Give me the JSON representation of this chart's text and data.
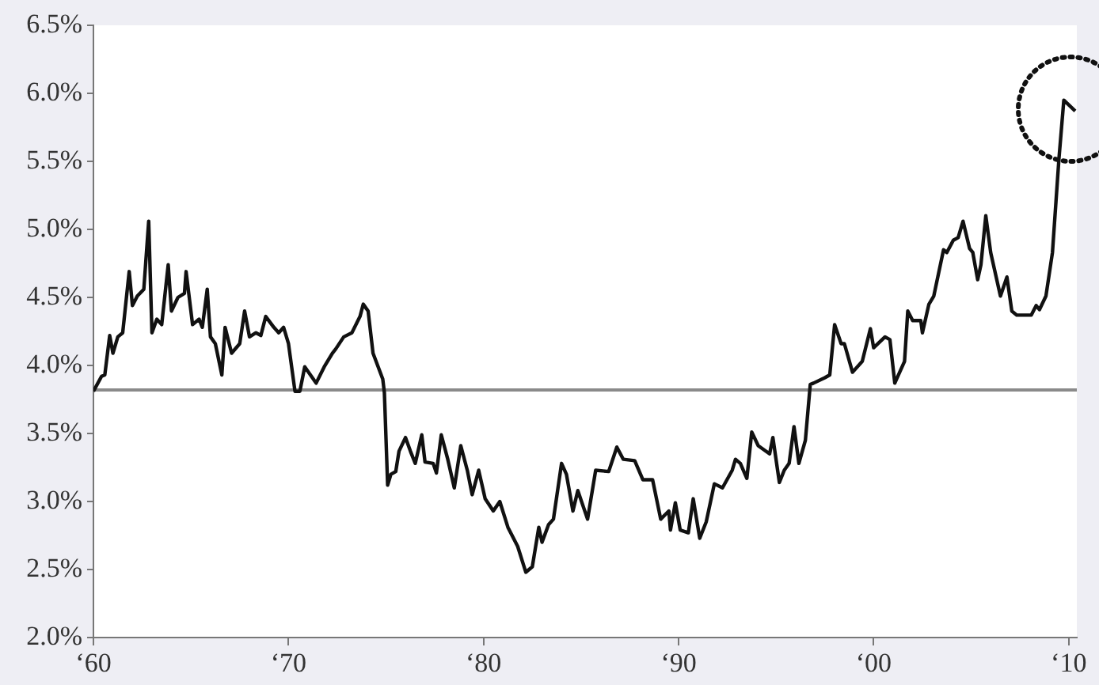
{
  "chart_data": {
    "type": "line",
    "x": [
      "1960-01",
      "1960-06",
      "1960-08",
      "1960-11",
      "1961-01",
      "1961-04",
      "1961-07",
      "1961-11",
      "1962-01",
      "1962-04",
      "1962-08",
      "1962-11",
      "1963-01",
      "1963-04",
      "1963-07",
      "1963-11",
      "1964-01",
      "1964-05",
      "1964-09",
      "1964-10",
      "1965-02",
      "1965-06",
      "1965-08",
      "1965-11",
      "1966-01",
      "1966-04",
      "1966-08",
      "1966-10",
      "1967-02",
      "1967-07",
      "1967-10",
      "1968-01",
      "1968-05",
      "1968-08",
      "1968-11",
      "1969-04",
      "1969-07",
      "1969-10",
      "1970-01",
      "1970-05",
      "1970-08",
      "1970-11",
      "1971-06",
      "1971-11",
      "1972-04",
      "1972-06",
      "1972-11",
      "1973-04",
      "1973-09",
      "1973-11",
      "1974-02",
      "1974-05",
      "1974-11",
      "1974-12",
      "1975-02",
      "1975-04",
      "1975-07",
      "1975-09",
      "1976-01",
      "1976-04",
      "1976-07",
      "1976-11",
      "1977-01",
      "1977-06",
      "1977-08",
      "1977-11",
      "1978-03",
      "1978-07",
      "1978-11",
      "1979-03",
      "1979-06",
      "1979-10",
      "1980-02",
      "1980-07",
      "1980-11",
      "1981-04",
      "1981-10",
      "1982-03",
      "1982-07",
      "1982-11",
      "1983-01",
      "1983-05",
      "1983-08",
      "1984-01",
      "1984-04",
      "1984-08",
      "1984-11",
      "1985-05",
      "1985-10",
      "1986-06",
      "1986-11",
      "1987-03",
      "1987-10",
      "1988-03",
      "1988-09",
      "1989-02",
      "1989-07",
      "1989-08",
      "1989-11",
      "1990-02",
      "1990-07",
      "1990-10",
      "1991-02",
      "1991-06",
      "1991-11",
      "1992-04",
      "1992-10",
      "1992-12",
      "1993-03",
      "1993-07",
      "1993-10",
      "1994-02",
      "1994-09",
      "1994-11",
      "1995-03",
      "1995-06",
      "1995-09",
      "1995-12",
      "1996-03",
      "1996-07",
      "1996-10",
      "1996-12",
      "1997-07",
      "1997-10",
      "1998-01",
      "1998-05",
      "1998-07",
      "1998-12",
      "1999-06",
      "1999-11",
      "2000-01",
      "2000-08",
      "2000-11",
      "2001-02",
      "2001-08",
      "2001-10",
      "2002-01",
      "2002-06",
      "2002-07",
      "2002-11",
      "2003-02",
      "2003-08",
      "2003-10",
      "2004-02",
      "2004-05",
      "2004-08",
      "2004-12",
      "2005-02",
      "2005-05",
      "2005-07",
      "2005-10",
      "2006-01",
      "2006-07",
      "2006-11",
      "2007-02",
      "2007-05",
      "2008-02",
      "2008-05",
      "2008-07",
      "2008-11",
      "2009-03",
      "2009-07",
      "2009-10",
      "2010-05"
    ],
    "series": [
      {
        "color": "#111111",
        "values": [
          3.81,
          3.92,
          3.93,
          4.22,
          4.09,
          4.21,
          4.24,
          4.69,
          4.44,
          4.51,
          4.56,
          5.06,
          4.24,
          4.34,
          4.3,
          4.74,
          4.4,
          4.5,
          4.53,
          4.69,
          4.3,
          4.34,
          4.28,
          4.56,
          4.21,
          4.16,
          3.93,
          4.28,
          4.09,
          4.16,
          4.4,
          4.21,
          4.24,
          4.22,
          4.36,
          4.28,
          4.24,
          4.28,
          4.16,
          3.81,
          3.81,
          3.99,
          3.87,
          3.99,
          4.09,
          4.12,
          4.21,
          4.24,
          4.36,
          4.45,
          4.4,
          4.09,
          3.9,
          3.8,
          3.12,
          3.2,
          3.22,
          3.37,
          3.47,
          3.37,
          3.28,
          3.49,
          3.29,
          3.28,
          3.21,
          3.49,
          3.31,
          3.1,
          3.41,
          3.23,
          3.05,
          3.23,
          3.02,
          2.93,
          3.0,
          2.81,
          2.67,
          2.48,
          2.52,
          2.81,
          2.7,
          2.83,
          2.87,
          3.28,
          3.2,
          2.93,
          3.08,
          2.87,
          3.23,
          3.22,
          3.4,
          3.31,
          3.3,
          3.16,
          3.16,
          2.87,
          2.93,
          2.79,
          2.99,
          2.79,
          2.77,
          3.02,
          2.73,
          2.85,
          3.13,
          3.1,
          3.23,
          3.31,
          3.28,
          3.17,
          3.51,
          3.41,
          3.35,
          3.47,
          3.14,
          3.23,
          3.28,
          3.55,
          3.28,
          3.45,
          3.86,
          3.87,
          3.91,
          3.93,
          4.3,
          4.16,
          4.16,
          3.95,
          4.03,
          4.27,
          4.13,
          4.21,
          4.19,
          3.87,
          4.03,
          4.4,
          4.33,
          4.33,
          4.24,
          4.45,
          4.51,
          4.85,
          4.83,
          4.92,
          4.94,
          5.06,
          4.86,
          4.83,
          4.63,
          4.74,
          5.1,
          4.83,
          4.51,
          4.65,
          4.4,
          4.37,
          4.37,
          4.44,
          4.41,
          4.51,
          4.83,
          5.52,
          5.95,
          5.87
        ]
      }
    ],
    "xlim": [
      "1960",
      "2010-06"
    ],
    "xticks": [
      {
        "value": "1960",
        "label": "‘60"
      },
      {
        "value": "1970",
        "label": "‘70"
      },
      {
        "value": "1980",
        "label": "‘80"
      },
      {
        "value": "1990",
        "label": "‘90"
      },
      {
        "value": "2000",
        "label": "‘00"
      },
      {
        "value": "2010",
        "label": "‘10"
      }
    ],
    "ylim": [
      2.0,
      6.5
    ],
    "yticks": [
      {
        "value": 2.0,
        "label": "2.0%"
      },
      {
        "value": 2.5,
        "label": "2.5%"
      },
      {
        "value": 3.0,
        "label": "3.0%"
      },
      {
        "value": 3.5,
        "label": "3.5%"
      },
      {
        "value": 4.0,
        "label": "4.0%"
      },
      {
        "value": 4.5,
        "label": "4.5%"
      },
      {
        "value": 5.0,
        "label": "5.0%"
      },
      {
        "value": 5.5,
        "label": "5.5%"
      },
      {
        "value": 6.0,
        "label": "6.0%"
      },
      {
        "value": 6.5,
        "label": "6.5%"
      }
    ],
    "ref_lines": [
      {
        "axis": "y",
        "value": 3.82,
        "color": "#8a8a8a"
      }
    ],
    "grid": false,
    "legend": false,
    "marker": "none",
    "line_style": "solid"
  }
}
